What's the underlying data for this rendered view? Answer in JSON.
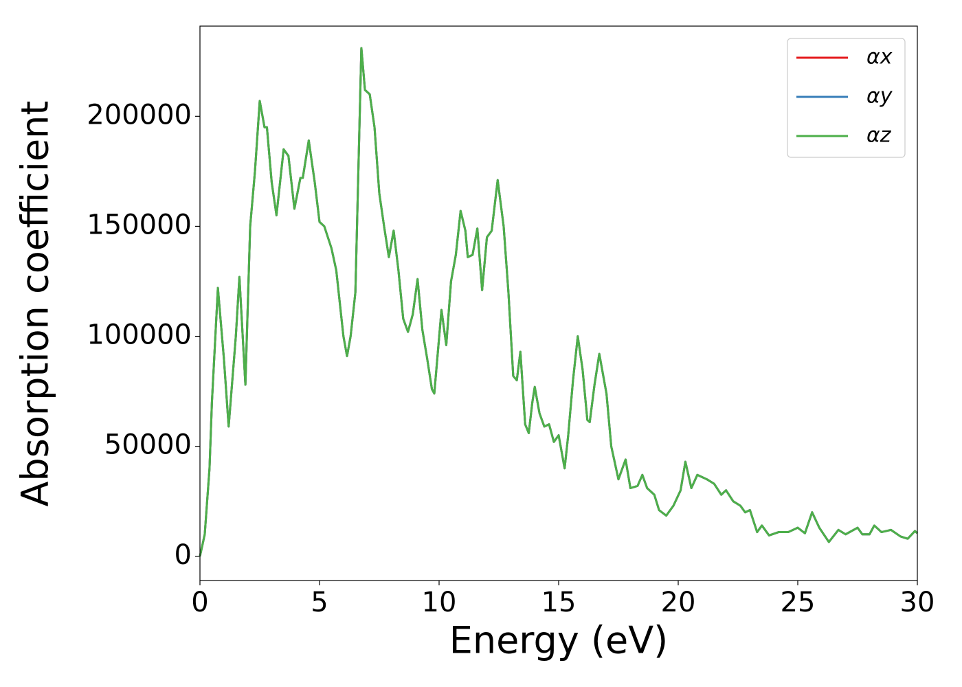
{
  "chart_data": {
    "type": "line",
    "x_label": "Energy (eV)",
    "y_label": "Absorption coefficient",
    "x": [
      0,
      0.2,
      0.4,
      0.5,
      0.75,
      1.0,
      1.2,
      1.5,
      1.65,
      1.9,
      2.1,
      2.3,
      2.5,
      2.7,
      2.8,
      3.0,
      3.2,
      3.5,
      3.7,
      3.95,
      4.2,
      4.3,
      4.55,
      4.8,
      5.0,
      5.2,
      5.5,
      5.7,
      6.0,
      6.15,
      6.3,
      6.5,
      6.75,
      6.9,
      7.1,
      7.3,
      7.5,
      7.7,
      7.9,
      8.1,
      8.3,
      8.5,
      8.7,
      8.9,
      9.1,
      9.3,
      9.5,
      9.7,
      9.8,
      10.1,
      10.3,
      10.5,
      10.7,
      10.9,
      11.1,
      11.2,
      11.4,
      11.6,
      11.8,
      12.0,
      12.2,
      12.45,
      12.7,
      12.9,
      13.1,
      13.25,
      13.4,
      13.6,
      13.75,
      13.9,
      14.0,
      14.2,
      14.4,
      14.6,
      14.8,
      15.0,
      15.25,
      15.4,
      15.6,
      15.8,
      16.0,
      16.2,
      16.3,
      16.5,
      16.7,
      16.9,
      17.0,
      17.2,
      17.5,
      17.8,
      18.0,
      18.3,
      18.5,
      18.7,
      19.0,
      19.2,
      19.5,
      19.8,
      20.1,
      20.3,
      20.55,
      20.8,
      21.2,
      21.5,
      21.8,
      22.0,
      22.3,
      22.6,
      22.8,
      23.0,
      23.3,
      23.5,
      23.8,
      24.2,
      24.6,
      25.0,
      25.3,
      25.6,
      25.9,
      26.3,
      26.7,
      27.0,
      27.5,
      27.7,
      28.0,
      28.2,
      28.5,
      28.9,
      29.3,
      29.6,
      29.9,
      30
    ],
    "series": [
      {
        "name": "αx",
        "color": "#e41a1c",
        "values": [
          0,
          10000,
          40000,
          70000,
          122000,
          90000,
          59000,
          100000,
          127000,
          78000,
          150000,
          175000,
          207000,
          195000,
          195000,
          170000,
          155000,
          185000,
          182000,
          158000,
          172000,
          172000,
          189000,
          170000,
          152000,
          150000,
          140000,
          130000,
          100000,
          91000,
          100000,
          120000,
          231000,
          212000,
          210000,
          195000,
          165000,
          150000,
          136000,
          148000,
          130000,
          108000,
          102000,
          110000,
          126000,
          103000,
          90000,
          76000,
          74000,
          112000,
          96000,
          125000,
          137000,
          157000,
          148000,
          136000,
          137000,
          149000,
          121000,
          145000,
          148000,
          171000,
          150000,
          120000,
          82000,
          80000,
          93000,
          60000,
          56000,
          70000,
          77000,
          65000,
          59000,
          60000,
          52000,
          55000,
          40000,
          55000,
          80000,
          100000,
          85000,
          62000,
          61000,
          78000,
          92000,
          80000,
          74000,
          50000,
          35000,
          44000,
          31000,
          32000,
          37000,
          31000,
          28000,
          21000,
          18500,
          23000,
          30000,
          43000,
          31000,
          37000,
          35000,
          33000,
          28000,
          30000,
          25000,
          23000,
          20000,
          21000,
          11000,
          14000,
          9500,
          11000,
          11000,
          13000,
          10500,
          20000,
          13000,
          6500,
          12000,
          10000,
          13000,
          10000,
          10000,
          14000,
          11000,
          12000,
          9000,
          8000,
          11500,
          10500
        ]
      },
      {
        "name": "αy",
        "color": "#377eb8",
        "values": [
          0,
          10000,
          40000,
          70000,
          122000,
          90000,
          59000,
          100000,
          127000,
          78000,
          150000,
          175000,
          207000,
          195000,
          195000,
          170000,
          155000,
          185000,
          182000,
          158000,
          172000,
          172000,
          189000,
          170000,
          152000,
          150000,
          140000,
          130000,
          100000,
          91000,
          100000,
          120000,
          231000,
          212000,
          210000,
          195000,
          165000,
          150000,
          136000,
          148000,
          130000,
          108000,
          102000,
          110000,
          126000,
          103000,
          90000,
          76000,
          74000,
          112000,
          96000,
          125000,
          137000,
          157000,
          148000,
          136000,
          137000,
          149000,
          121000,
          145000,
          148000,
          171000,
          150000,
          120000,
          82000,
          80000,
          93000,
          60000,
          56000,
          70000,
          77000,
          65000,
          59000,
          60000,
          52000,
          55000,
          40000,
          55000,
          80000,
          100000,
          85000,
          62000,
          61000,
          78000,
          92000,
          80000,
          74000,
          50000,
          35000,
          44000,
          31000,
          32000,
          37000,
          31000,
          28000,
          21000,
          18500,
          23000,
          30000,
          43000,
          31000,
          37000,
          35000,
          33000,
          28000,
          30000,
          25000,
          23000,
          20000,
          21000,
          11000,
          14000,
          9500,
          11000,
          11000,
          13000,
          10500,
          20000,
          13000,
          6500,
          12000,
          10000,
          13000,
          10000,
          10000,
          14000,
          11000,
          12000,
          9000,
          8000,
          11500,
          10500
        ]
      },
      {
        "name": "αz",
        "color": "#4daf4a",
        "values": [
          0,
          10000,
          40000,
          70000,
          122000,
          90000,
          59000,
          100000,
          127000,
          78000,
          150000,
          175000,
          207000,
          195000,
          195000,
          170000,
          155000,
          185000,
          182000,
          158000,
          172000,
          172000,
          189000,
          170000,
          152000,
          150000,
          140000,
          130000,
          100000,
          91000,
          100000,
          120000,
          231000,
          212000,
          210000,
          195000,
          165000,
          150000,
          136000,
          148000,
          130000,
          108000,
          102000,
          110000,
          126000,
          103000,
          90000,
          76000,
          74000,
          112000,
          96000,
          125000,
          137000,
          157000,
          148000,
          136000,
          137000,
          149000,
          121000,
          145000,
          148000,
          171000,
          150000,
          120000,
          82000,
          80000,
          93000,
          60000,
          56000,
          70000,
          77000,
          65000,
          59000,
          60000,
          52000,
          55000,
          40000,
          55000,
          80000,
          100000,
          85000,
          62000,
          61000,
          78000,
          92000,
          80000,
          74000,
          50000,
          35000,
          44000,
          31000,
          32000,
          37000,
          31000,
          28000,
          21000,
          18500,
          23000,
          30000,
          43000,
          31000,
          37000,
          35000,
          33000,
          28000,
          30000,
          25000,
          23000,
          20000,
          21000,
          11000,
          14000,
          9500,
          11000,
          11000,
          13000,
          10500,
          20000,
          13000,
          6500,
          12000,
          10000,
          13000,
          10000,
          10000,
          14000,
          11000,
          12000,
          9000,
          8000,
          11500,
          10500
        ]
      }
    ],
    "xlim": [
      0,
      30
    ],
    "xticks": [
      0,
      5,
      10,
      15,
      20,
      25,
      30
    ],
    "ylim": [
      -11000,
      241000
    ],
    "yticks": [
      0,
      50000,
      100000,
      150000,
      200000
    ],
    "grid": false,
    "legend": "upper right"
  }
}
